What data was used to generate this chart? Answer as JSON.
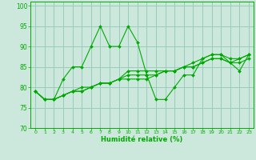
{
  "title": "",
  "xlabel": "Humidité relative (%)",
  "ylabel": "",
  "xlim": [
    -0.5,
    23.5
  ],
  "ylim": [
    70,
    101
  ],
  "yticks": [
    70,
    75,
    80,
    85,
    90,
    95,
    100
  ],
  "xticks": [
    0,
    1,
    2,
    3,
    4,
    5,
    6,
    7,
    8,
    9,
    10,
    11,
    12,
    13,
    14,
    15,
    16,
    17,
    18,
    19,
    20,
    21,
    22,
    23
  ],
  "background_color": "#cce8dc",
  "grid_color": "#99ccbb",
  "line_color": "#00aa00",
  "series": [
    [
      79,
      77,
      77,
      82,
      85,
      85,
      90,
      95,
      90,
      90,
      95,
      91,
      83,
      77,
      77,
      80,
      83,
      83,
      87,
      88,
      88,
      86,
      84,
      88
    ],
    [
      79,
      77,
      77,
      78,
      79,
      80,
      80,
      81,
      81,
      82,
      84,
      84,
      84,
      84,
      84,
      84,
      85,
      86,
      87,
      88,
      88,
      87,
      87,
      88
    ],
    [
      79,
      77,
      77,
      78,
      79,
      79,
      80,
      81,
      81,
      82,
      83,
      83,
      83,
      83,
      84,
      84,
      85,
      85,
      86,
      87,
      87,
      86,
      86,
      87
    ],
    [
      79,
      77,
      77,
      78,
      79,
      79,
      80,
      81,
      81,
      82,
      82,
      82,
      82,
      83,
      84,
      84,
      85,
      85,
      86,
      87,
      87,
      86,
      87,
      88
    ]
  ]
}
